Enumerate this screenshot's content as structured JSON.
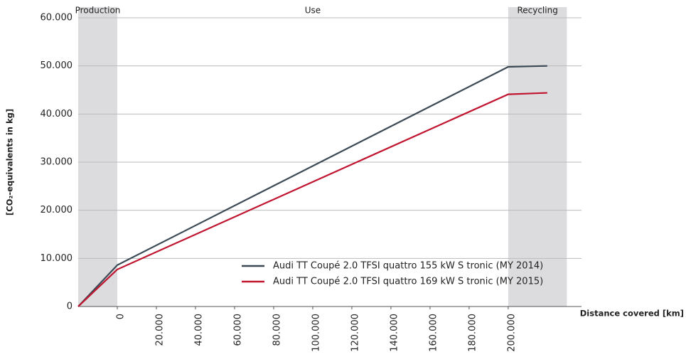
{
  "chart_data": {
    "type": "line",
    "y_label": "[CO₂-equivalents in kg]",
    "x_label": "Distance covered [km]",
    "phases": [
      {
        "label": "Production",
        "xrange": [
          -20000,
          0
        ],
        "shaded": true
      },
      {
        "label": "Use",
        "xrange": [
          0,
          200000
        ],
        "shaded": false
      },
      {
        "label": "Recycling",
        "xrange": [
          200000,
          230000
        ],
        "shaded": true
      }
    ],
    "x": [
      -20000,
      0,
      200000,
      220000
    ],
    "series": [
      {
        "name": "Audi TT Coupé 2.0 TFSI quattro 155 kW S tronic (MY 2014)",
        "color": "#3c4a56",
        "values": [
          0,
          8600,
          49800,
          50000
        ]
      },
      {
        "name": "Audi TT Coupé 2.0 TFSI quattro 169 kW S tronic (MY 2015)",
        "color": "#c0142f",
        "values": [
          0,
          7700,
          44100,
          44400
        ]
      }
    ],
    "xlim": [
      -20000,
      237500
    ],
    "xticks": [
      0,
      {
        "value": 20000,
        "label": "20.000"
      },
      {
        "value": 40000,
        "label": "40.000"
      },
      {
        "value": 60000,
        "label": "60.000"
      },
      {
        "value": 80000,
        "label": "80.000"
      },
      {
        "value": 100000,
        "label": "100.000"
      },
      {
        "value": 120000,
        "label": "120.000"
      },
      {
        "value": 140000,
        "label": "140.000"
      },
      {
        "value": 160000,
        "label": "160.000"
      },
      {
        "value": 180000,
        "label": "180.000"
      },
      {
        "value": 200000,
        "label": "200.000"
      }
    ],
    "ylim": [
      0,
      60000
    ],
    "yticks": [
      0,
      {
        "value": 10000,
        "label": "10.000"
      },
      {
        "value": 20000,
        "label": "20.000"
      },
      {
        "value": 30000,
        "label": "30.000"
      },
      {
        "value": 40000,
        "label": "40.000"
      },
      {
        "value": 50000,
        "label": "50.000"
      },
      {
        "value": 60000,
        "label": "60.000"
      }
    ],
    "grid": true,
    "legend": "lower right"
  }
}
